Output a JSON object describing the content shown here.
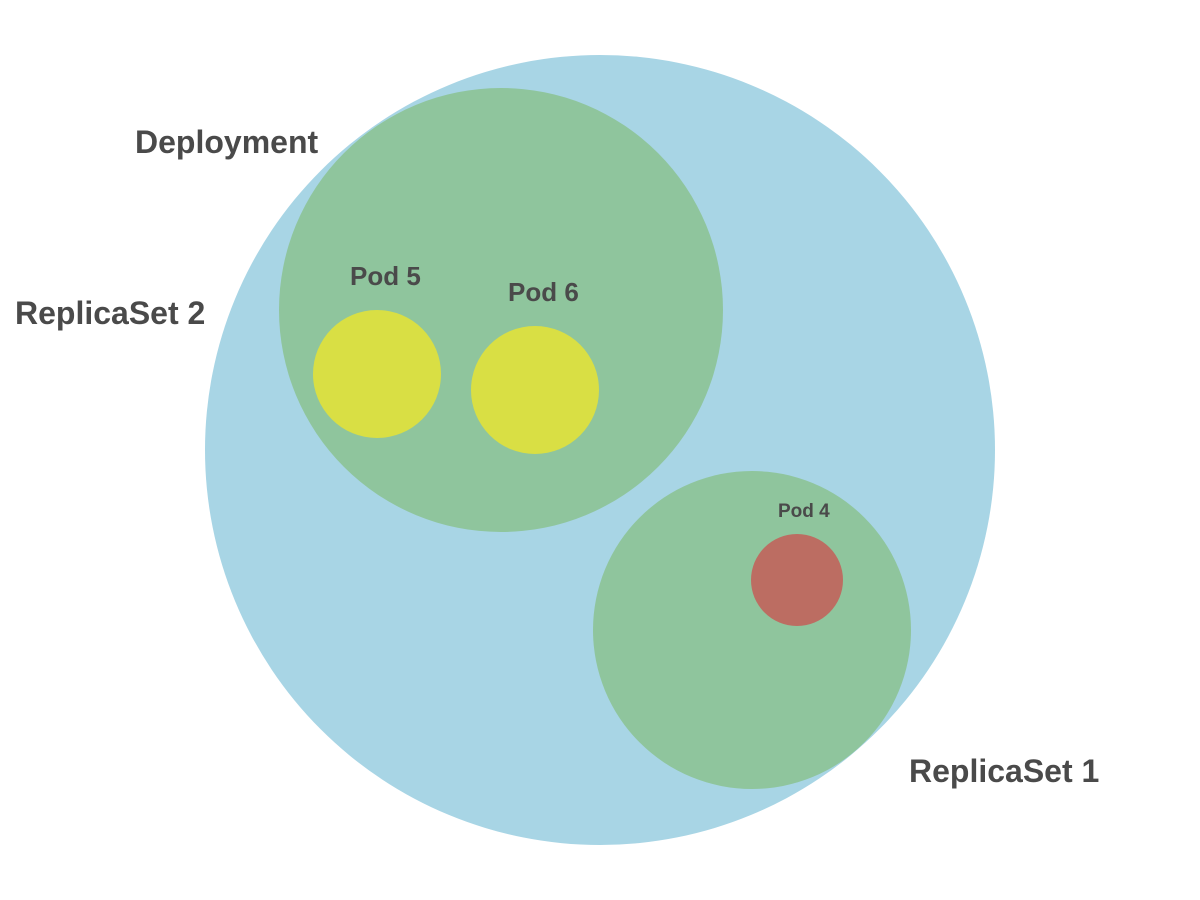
{
  "diagram": {
    "deployment": {
      "label": "Deployment",
      "color": "#a8d5e5"
    },
    "replicaset_2": {
      "label": "ReplicaSet 2",
      "color": "#8fc59d",
      "pods": [
        {
          "label": "Pod 5",
          "color": "#d9df44"
        },
        {
          "label": "Pod 6",
          "color": "#d9df44"
        }
      ]
    },
    "replicaset_1": {
      "label": "ReplicaSet 1",
      "color": "#8fc59d",
      "pods": [
        {
          "label": "Pod 4",
          "color": "#bc6d62"
        }
      ]
    }
  }
}
